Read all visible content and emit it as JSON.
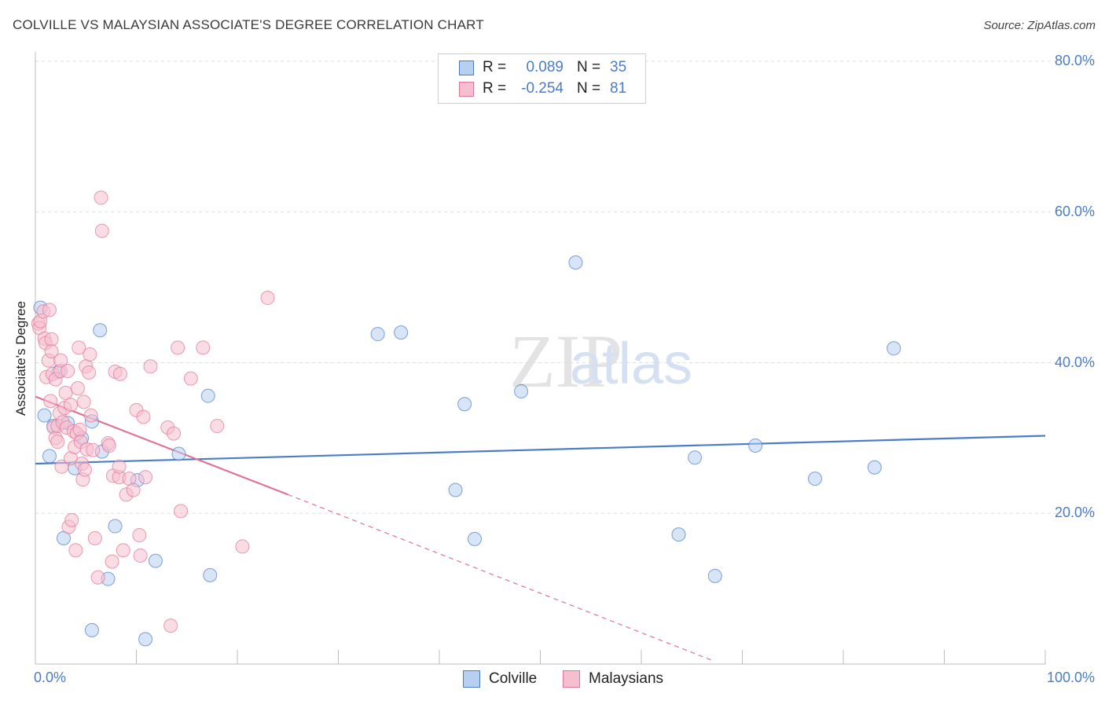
{
  "chart_data": {
    "type": "scatter",
    "title": "COLVILLE VS MALAYSIAN ASSOCIATE'S DEGREE CORRELATION CHART",
    "source": "Source: ZipAtlas.com",
    "xlabel": "",
    "ylabel": "Associate's Degree",
    "xlim": [
      0,
      100
    ],
    "ylim": [
      0,
      80
    ],
    "x_tick_labels": [
      "0.0%",
      "100.0%"
    ],
    "y_ticks": [
      20,
      40,
      60,
      80
    ],
    "y_tick_labels": [
      "20.0%",
      "40.0%",
      "60.0%",
      "80.0%"
    ],
    "grid": true,
    "legend": {
      "rows": [
        {
          "r_label": "R =",
          "r_value": "0.089",
          "n_label": "N =",
          "n_value": "35"
        },
        {
          "r_label": "R =",
          "r_value": "-0.254",
          "n_label": "N =",
          "n_value": "81"
        }
      ]
    },
    "series": [
      {
        "name": "Colville",
        "color": "#4a7cc9",
        "fill": "#b7cff0",
        "trend": {
          "x0": 0,
          "y0": 26.6,
          "x1": 100,
          "y1": 30.3
        },
        "points": [
          [
            0.5,
            47.3
          ],
          [
            0.9,
            33.0
          ],
          [
            1.4,
            27.6
          ],
          [
            1.8,
            31.6
          ],
          [
            2.3,
            38.8
          ],
          [
            2.8,
            16.7
          ],
          [
            3.2,
            32.0
          ],
          [
            3.9,
            26.0
          ],
          [
            4.6,
            30.0
          ],
          [
            5.6,
            32.2
          ],
          [
            5.6,
            4.5
          ],
          [
            6.4,
            44.3
          ],
          [
            6.6,
            28.2
          ],
          [
            7.2,
            11.3
          ],
          [
            7.9,
            18.3
          ],
          [
            10.1,
            24.4
          ],
          [
            10.9,
            3.3
          ],
          [
            11.9,
            13.7
          ],
          [
            14.2,
            27.9
          ],
          [
            17.1,
            35.6
          ],
          [
            17.3,
            11.8
          ],
          [
            33.9,
            43.8
          ],
          [
            36.2,
            44.0
          ],
          [
            41.6,
            23.1
          ],
          [
            42.5,
            34.5
          ],
          [
            43.5,
            16.6
          ],
          [
            48.1,
            36.2
          ],
          [
            53.5,
            53.3
          ],
          [
            63.7,
            17.2
          ],
          [
            65.3,
            27.4
          ],
          [
            67.3,
            11.7
          ],
          [
            71.3,
            29.0
          ],
          [
            77.2,
            24.6
          ],
          [
            83.1,
            26.1
          ],
          [
            85.0,
            41.9
          ]
        ]
      },
      {
        "name": "Malaysians",
        "color": "#e07396",
        "fill": "#f6bfd0",
        "trend": {
          "x0": 0,
          "y0": 35.5,
          "x1": 25,
          "y1": 22.5
        },
        "trend_dashed": {
          "x0": 25,
          "y0": 22.5,
          "x1": 67,
          "y1": 0.5
        },
        "points": [
          [
            0.3,
            45.2
          ],
          [
            0.4,
            44.6
          ],
          [
            0.5,
            45.5
          ],
          [
            0.8,
            46.8
          ],
          [
            0.9,
            43.2
          ],
          [
            1.0,
            42.6
          ],
          [
            1.1,
            38.1
          ],
          [
            1.3,
            40.3
          ],
          [
            1.4,
            47.0
          ],
          [
            1.5,
            34.9
          ],
          [
            1.6,
            43.1
          ],
          [
            1.6,
            41.5
          ],
          [
            1.7,
            38.5
          ],
          [
            1.8,
            31.4
          ],
          [
            2.0,
            30.0
          ],
          [
            2.0,
            37.8
          ],
          [
            2.2,
            29.5
          ],
          [
            2.2,
            31.6
          ],
          [
            2.4,
            33.3
          ],
          [
            2.5,
            38.9
          ],
          [
            2.5,
            40.3
          ],
          [
            2.6,
            26.2
          ],
          [
            2.7,
            32.1
          ],
          [
            2.9,
            34.0
          ],
          [
            3.0,
            36.0
          ],
          [
            3.1,
            31.4
          ],
          [
            3.2,
            38.9
          ],
          [
            3.3,
            18.2
          ],
          [
            3.5,
            34.4
          ],
          [
            3.5,
            27.3
          ],
          [
            3.6,
            19.1
          ],
          [
            3.8,
            30.9
          ],
          [
            3.9,
            28.8
          ],
          [
            4.0,
            15.1
          ],
          [
            4.1,
            30.6
          ],
          [
            4.2,
            36.6
          ],
          [
            4.3,
            42.0
          ],
          [
            4.4,
            31.1
          ],
          [
            4.5,
            29.5
          ],
          [
            4.6,
            26.6
          ],
          [
            4.7,
            24.5
          ],
          [
            4.8,
            34.8
          ],
          [
            4.9,
            25.8
          ],
          [
            5.0,
            39.5
          ],
          [
            5.1,
            28.5
          ],
          [
            5.3,
            38.7
          ],
          [
            5.4,
            41.1
          ],
          [
            5.5,
            33.0
          ],
          [
            5.7,
            28.4
          ],
          [
            5.9,
            16.7
          ],
          [
            6.2,
            11.5
          ],
          [
            6.5,
            61.9
          ],
          [
            6.6,
            57.5
          ],
          [
            7.2,
            29.3
          ],
          [
            7.3,
            29.0
          ],
          [
            7.6,
            13.6
          ],
          [
            7.7,
            25.0
          ],
          [
            7.9,
            38.8
          ],
          [
            8.3,
            24.8
          ],
          [
            8.3,
            26.2
          ],
          [
            8.4,
            38.5
          ],
          [
            8.7,
            15.1
          ],
          [
            9.0,
            22.5
          ],
          [
            9.3,
            24.6
          ],
          [
            9.7,
            23.1
          ],
          [
            10.0,
            33.7
          ],
          [
            10.3,
            17.1
          ],
          [
            10.4,
            14.4
          ],
          [
            10.7,
            32.8
          ],
          [
            10.9,
            24.8
          ],
          [
            11.4,
            39.5
          ],
          [
            13.1,
            31.4
          ],
          [
            13.4,
            5.1
          ],
          [
            13.7,
            30.6
          ],
          [
            14.1,
            42.0
          ],
          [
            14.4,
            20.3
          ],
          [
            15.4,
            37.9
          ],
          [
            16.6,
            42.0
          ],
          [
            18.0,
            31.6
          ],
          [
            20.5,
            15.6
          ],
          [
            23.0,
            48.6
          ]
        ]
      }
    ]
  }
}
